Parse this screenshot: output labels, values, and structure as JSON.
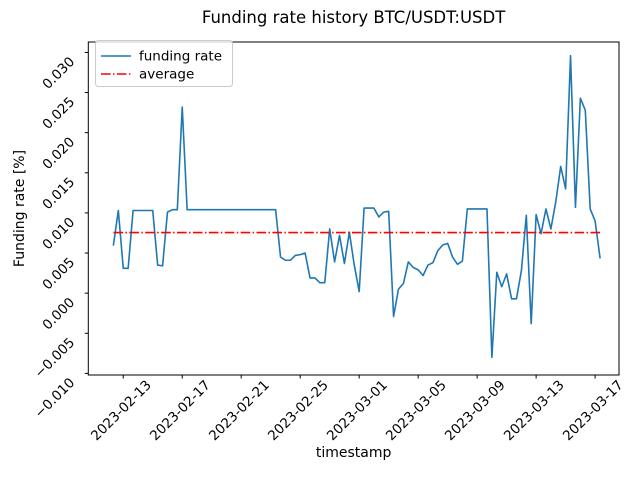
{
  "chart_data": {
    "type": "line",
    "title": "Funding rate history BTC/USDT:USDT",
    "xlabel": "timestamp",
    "ylabel": "Funding rate [%]",
    "grid": false,
    "legend_position": "upper left",
    "legend": {
      "funding_rate_label": "funding rate",
      "average_label": "average"
    },
    "colors": {
      "funding_rate": "#1f77b4",
      "average": "#ff0000",
      "axes": "#000000",
      "legend_border": "#cccccc",
      "background": "#ffffff"
    },
    "x_ticklabels": [
      "2023-02-13",
      "2023-02-17",
      "2023-02-21",
      "2023-02-25",
      "2023-03-01",
      "2023-03-05",
      "2023-03-09",
      "2023-03-13",
      "2023-03-17"
    ],
    "y_ticks": [
      0.03,
      0.025,
      0.02,
      0.015,
      0.01,
      0.005,
      0.0,
      -0.005,
      -0.01
    ],
    "y_ticklabels": [
      "0.030",
      "0.025",
      "0.020",
      "0.015",
      "0.010",
      "0.005",
      "0.000",
      "−0.005",
      "−0.010"
    ],
    "xlim_days_from_first_tick": [
      -2.37,
      33.62
    ],
    "ylim": [
      -0.0102,
      0.0313
    ],
    "series": [
      {
        "name": "funding rate",
        "style": "solid",
        "start_timestamp": "2023-02-12T08:00:00Z",
        "interval_hours": 8,
        "values": [
          0.006,
          0.0103,
          0.0031,
          0.0031,
          0.0103,
          0.0103,
          0.0103,
          0.0103,
          0.0103,
          0.0035,
          0.0034,
          0.0101,
          0.0104,
          0.0104,
          0.0232,
          0.0104,
          0.0104,
          0.0104,
          0.0104,
          0.0104,
          0.0104,
          0.0104,
          0.0104,
          0.0104,
          0.0104,
          0.0104,
          0.0104,
          0.0104,
          0.0104,
          0.0104,
          0.0104,
          0.0104,
          0.0104,
          0.0104,
          0.0045,
          0.0041,
          0.0041,
          0.0047,
          0.0048,
          0.005,
          0.0019,
          0.0019,
          0.0013,
          0.0013,
          0.008,
          0.0039,
          0.0072,
          0.0037,
          0.0076,
          0.0035,
          0.0002,
          0.0106,
          0.0106,
          0.0106,
          0.0095,
          0.0101,
          0.0102,
          -0.0029,
          0.0005,
          0.0012,
          0.0039,
          0.0032,
          0.0029,
          0.0022,
          0.0035,
          0.0038,
          0.0053,
          0.006,
          0.0062,
          0.0045,
          0.0036,
          0.004,
          0.0105,
          0.0105,
          0.0105,
          0.0105,
          0.0105,
          -0.008,
          0.0026,
          0.0008,
          0.0024,
          -0.0007,
          -0.0007,
          0.0028,
          0.0097,
          -0.0038,
          0.0098,
          0.0074,
          0.0105,
          0.008,
          0.0114,
          0.0158,
          0.013,
          0.0296,
          0.0107,
          0.0243,
          0.0228,
          0.0105,
          0.009,
          0.0044
        ]
      },
      {
        "name": "average",
        "style": "dashdot",
        "value": 0.0075
      }
    ]
  }
}
